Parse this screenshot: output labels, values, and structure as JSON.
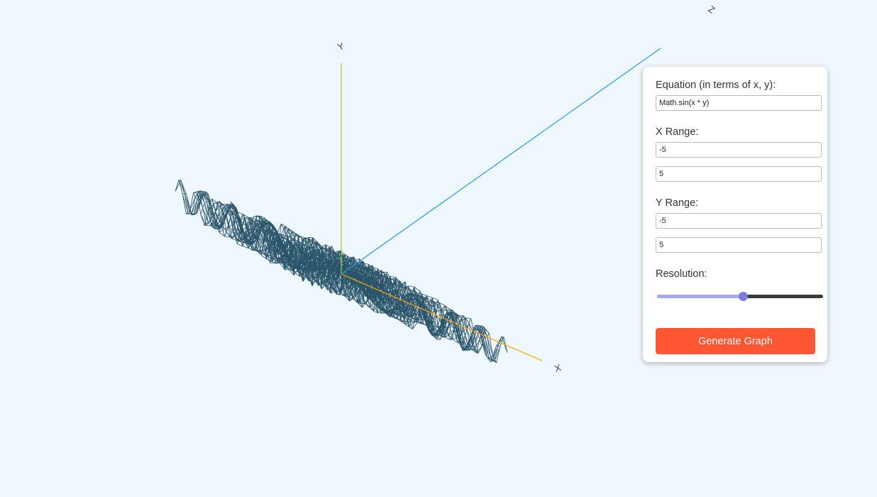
{
  "scene": {
    "background_color": "#f0f8ff",
    "mesh_color": "#2a5469",
    "axis_x_color": "#ffa500",
    "axis_y_color": "#9acd32",
    "axis_z_color": "#1e9be0",
    "axes": {
      "x_label": "X",
      "y_label": "Y",
      "z_label": "Z"
    }
  },
  "form": {
    "equation_label": "Equation (in terms of x, y):",
    "equation_value": "Math.sin(x * y)",
    "x_range_label": "X Range:",
    "x_min": "-5",
    "x_max": "5",
    "y_range_label": "Y Range:",
    "y_min": "-5",
    "y_max": "5",
    "resolution_label": "Resolution:",
    "resolution_fraction": 0.52,
    "generate_label": "Generate Graph",
    "button_color": "#ff5733"
  }
}
